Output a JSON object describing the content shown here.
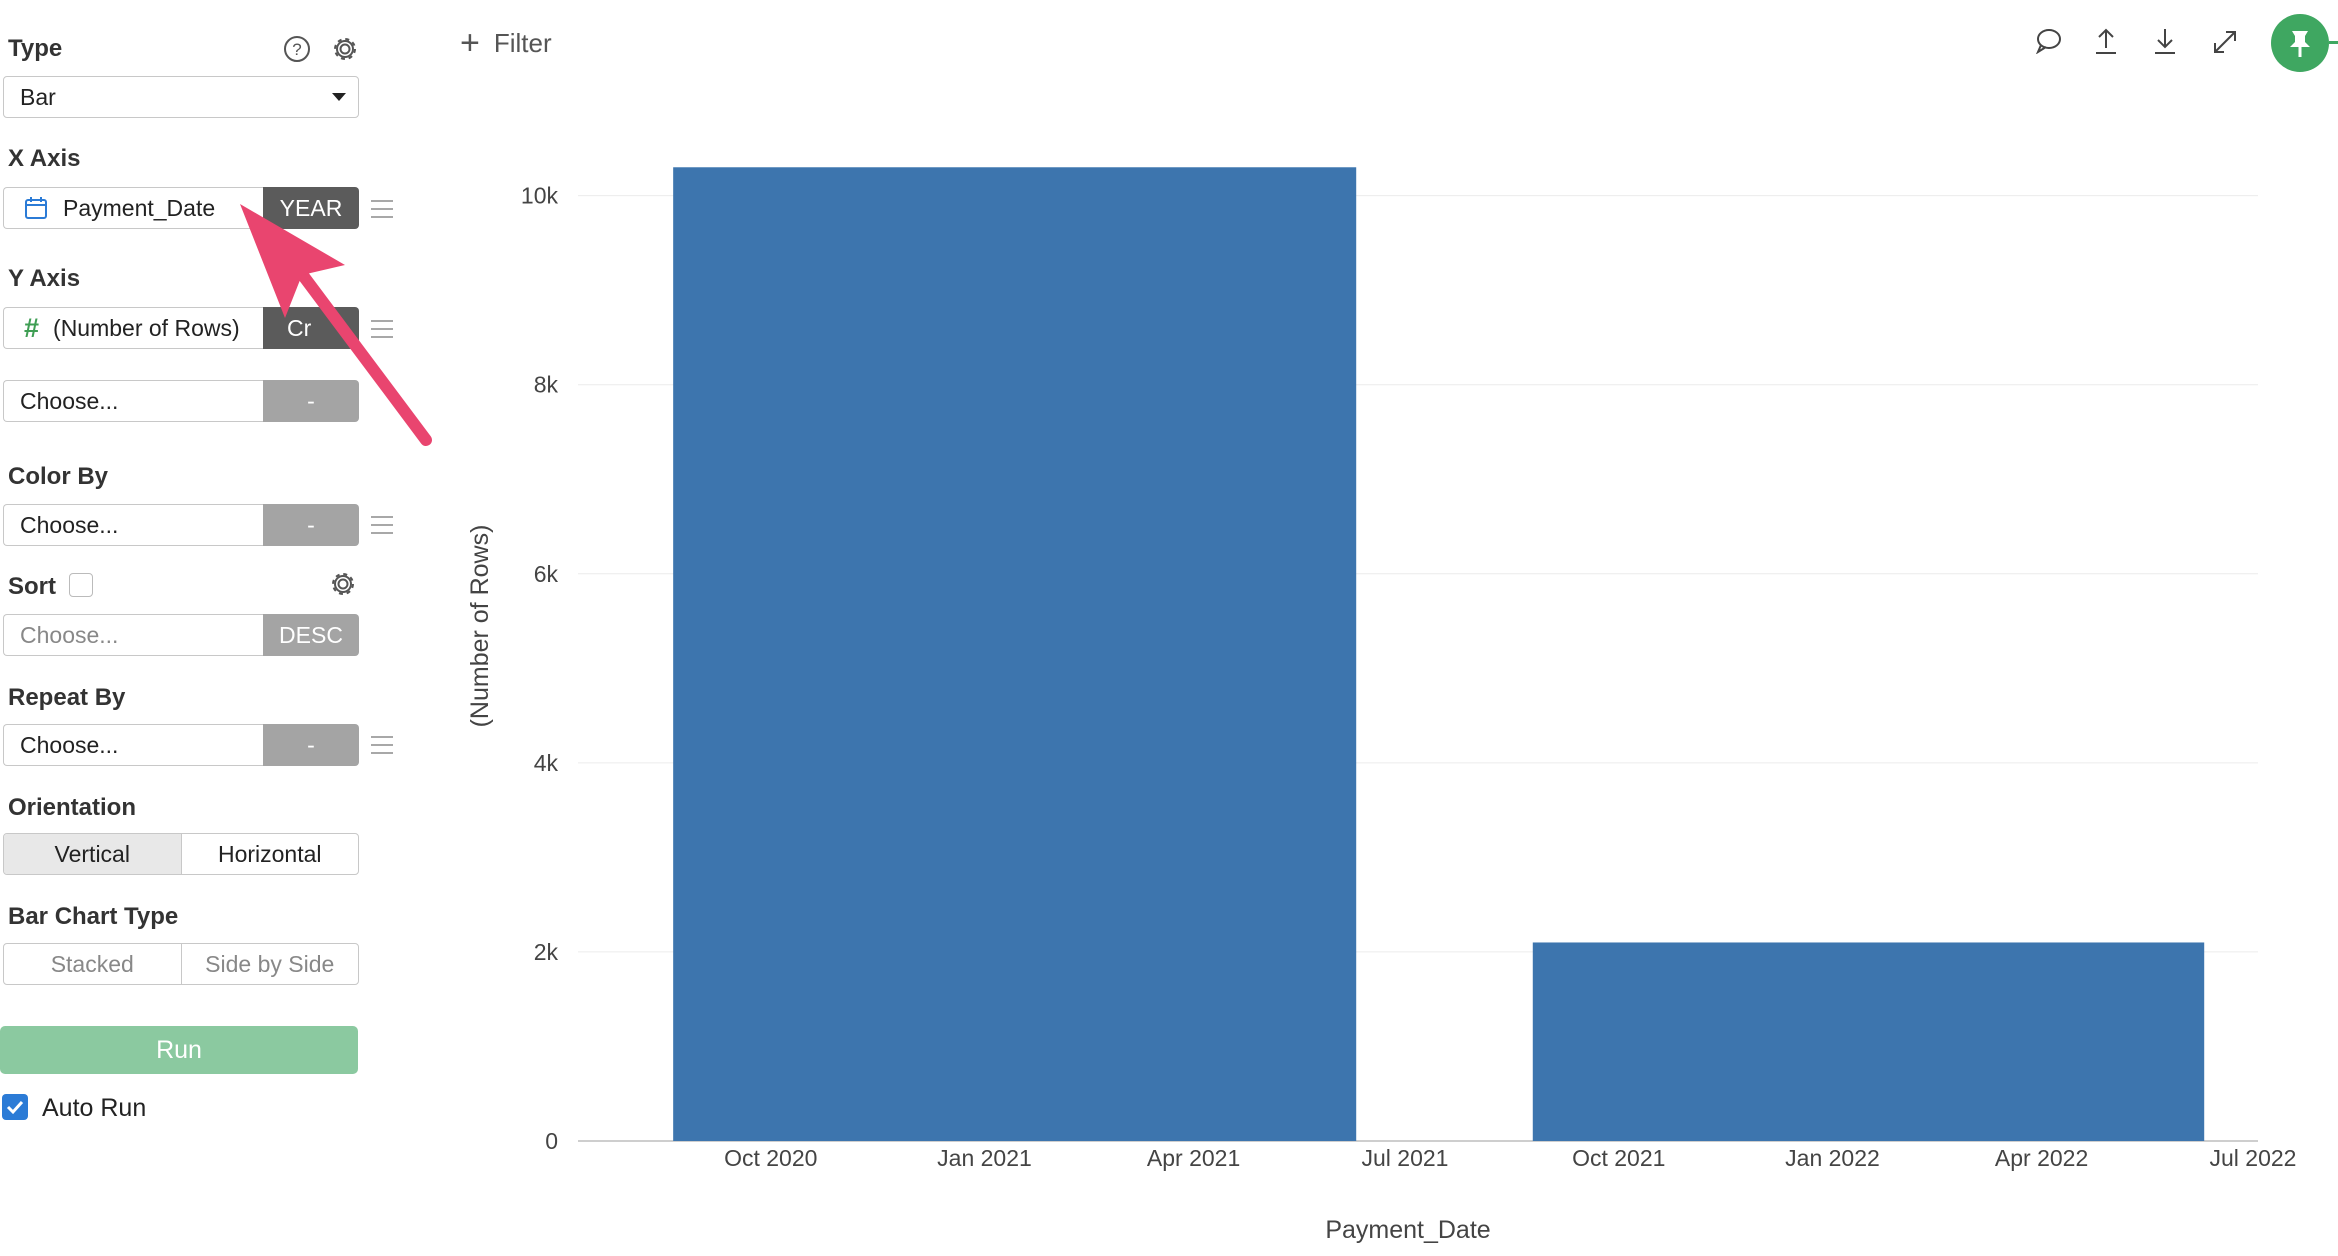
{
  "panel": {
    "type_label": "Type",
    "type_value": "Bar",
    "x_axis_label": "X Axis",
    "x_axis_field": "Payment_Date",
    "x_axis_tag": "YEAR",
    "y_axis_label": "Y Axis",
    "y_axis_field": "(Number of Rows)",
    "y_axis_tag": "Cr",
    "y_axis_add_placeholder": "Choose...",
    "y_axis_add_tag": "-",
    "color_by_label": "Color By",
    "color_by_placeholder": "Choose...",
    "color_by_tag": "-",
    "sort_label": "Sort",
    "sort_placeholder": "Choose...",
    "sort_tag": "DESC",
    "repeat_by_label": "Repeat By",
    "repeat_by_placeholder": "Choose...",
    "repeat_by_tag": "-",
    "orientation_label": "Orientation",
    "orientation_options": [
      "Vertical",
      "Horizontal"
    ],
    "bar_type_label": "Bar Chart Type",
    "bar_type_options": [
      "Stacked",
      "Side by Side"
    ],
    "run_label": "Run",
    "auto_run_label": "Auto Run"
  },
  "topbar": {
    "filter_label": "Filter",
    "icons": [
      "comment-icon",
      "upload-icon",
      "download-icon",
      "expand-icon",
      "pin-icon"
    ]
  },
  "colors": {
    "bar": "#3d75ae",
    "run": "#8bc9a0",
    "pin": "#3fa761",
    "arrow": "#e9456f",
    "accent_blue": "#2b7bd6",
    "hash_green": "#3f9e54"
  },
  "chart_data": {
    "type": "bar",
    "title": "",
    "xlabel": "Payment_Date",
    "ylabel": "(Number of Rows)",
    "y_ticks": [
      0,
      2000,
      4000,
      6000,
      8000,
      10000
    ],
    "y_tick_labels": [
      "0",
      "2k",
      "4k",
      "6k",
      "8k",
      "10k"
    ],
    "ylim": [
      0,
      10800
    ],
    "x_ticks": [
      "2020-10-01",
      "2021-01-01",
      "2021-04-01",
      "2021-07-01",
      "2021-10-01",
      "2022-01-01",
      "2022-04-01",
      "2022-07-01"
    ],
    "x_tick_labels": [
      "Oct 2020",
      "Jan 2021",
      "Apr 2021",
      "Jul 2021",
      "Oct 2021",
      "Jan 2022",
      "Apr 2022",
      "Jul 2022"
    ],
    "series": [
      {
        "bars": [
          {
            "start": "2020-08-20",
            "end": "2021-06-10",
            "value": 10300
          },
          {
            "start": "2021-08-25",
            "end": "2022-06-10",
            "value": 2100
          }
        ]
      }
    ],
    "grid": true
  }
}
